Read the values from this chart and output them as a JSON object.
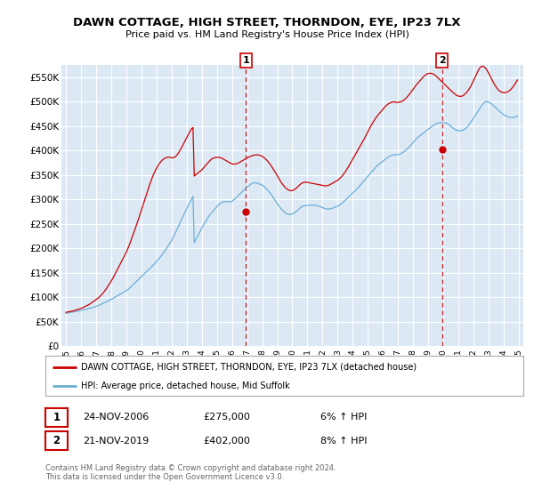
{
  "title": "DAWN COTTAGE, HIGH STREET, THORNDON, EYE, IP23 7LX",
  "subtitle": "Price paid vs. HM Land Registry's House Price Index (HPI)",
  "legend_line1": "DAWN COTTAGE, HIGH STREET, THORNDON, EYE, IP23 7LX (detached house)",
  "legend_line2": "HPI: Average price, detached house, Mid Suffolk",
  "sale1_date": "24-NOV-2006",
  "sale1_price": "£275,000",
  "sale1_hpi": "6% ↑ HPI",
  "sale2_date": "21-NOV-2019",
  "sale2_price": "£402,000",
  "sale2_hpi": "8% ↑ HPI",
  "footnote": "Contains HM Land Registry data © Crown copyright and database right 2024.\nThis data is licensed under the Open Government Licence v3.0.",
  "bg_color": "#ffffff",
  "plot_bg_color": "#dce9f5",
  "grid_color": "#ffffff",
  "hpi_color": "#6baed6",
  "price_color": "#cc0000",
  "sale_vline_color": "#cc0000",
  "ylim": [
    0,
    575000
  ],
  "yticks": [
    0,
    50000,
    100000,
    150000,
    200000,
    250000,
    300000,
    350000,
    400000,
    450000,
    500000,
    550000
  ],
  "ytick_labels": [
    "£0",
    "£50K",
    "£100K",
    "£150K",
    "£200K",
    "£250K",
    "£300K",
    "£350K",
    "£400K",
    "£450K",
    "£500K",
    "£550K"
  ],
  "hpi_months": [
    1995.0,
    1995.083,
    1995.167,
    1995.25,
    1995.333,
    1995.417,
    1995.5,
    1995.583,
    1995.667,
    1995.75,
    1995.833,
    1995.917,
    1996.0,
    1996.083,
    1996.167,
    1996.25,
    1996.333,
    1996.417,
    1996.5,
    1996.583,
    1996.667,
    1996.75,
    1996.833,
    1996.917,
    1997.0,
    1997.083,
    1997.167,
    1997.25,
    1997.333,
    1997.417,
    1997.5,
    1997.583,
    1997.667,
    1997.75,
    1997.833,
    1997.917,
    1998.0,
    1998.083,
    1998.167,
    1998.25,
    1998.333,
    1998.417,
    1998.5,
    1998.583,
    1998.667,
    1998.75,
    1998.833,
    1998.917,
    1999.0,
    1999.083,
    1999.167,
    1999.25,
    1999.333,
    1999.417,
    1999.5,
    1999.583,
    1999.667,
    1999.75,
    1999.833,
    1999.917,
    2000.0,
    2000.083,
    2000.167,
    2000.25,
    2000.333,
    2000.417,
    2000.5,
    2000.583,
    2000.667,
    2000.75,
    2000.833,
    2000.917,
    2001.0,
    2001.083,
    2001.167,
    2001.25,
    2001.333,
    2001.417,
    2001.5,
    2001.583,
    2001.667,
    2001.75,
    2001.833,
    2001.917,
    2002.0,
    2002.083,
    2002.167,
    2002.25,
    2002.333,
    2002.417,
    2002.5,
    2002.583,
    2002.667,
    2002.75,
    2002.833,
    2002.917,
    2003.0,
    2003.083,
    2003.167,
    2003.25,
    2003.333,
    2003.417,
    2003.5,
    2003.583,
    2003.667,
    2003.75,
    2003.833,
    2003.917,
    2004.0,
    2004.083,
    2004.167,
    2004.25,
    2004.333,
    2004.417,
    2004.5,
    2004.583,
    2004.667,
    2004.75,
    2004.833,
    2004.917,
    2005.0,
    2005.083,
    2005.167,
    2005.25,
    2005.333,
    2005.417,
    2005.5,
    2005.583,
    2005.667,
    2005.75,
    2005.833,
    2005.917,
    2006.0,
    2006.083,
    2006.167,
    2006.25,
    2006.333,
    2006.417,
    2006.5,
    2006.583,
    2006.667,
    2006.75,
    2006.833,
    2006.917,
    2007.0,
    2007.083,
    2007.167,
    2007.25,
    2007.333,
    2007.417,
    2007.5,
    2007.583,
    2007.667,
    2007.75,
    2007.833,
    2007.917,
    2008.0,
    2008.083,
    2008.167,
    2008.25,
    2008.333,
    2008.417,
    2008.5,
    2008.583,
    2008.667,
    2008.75,
    2008.833,
    2008.917,
    2009.0,
    2009.083,
    2009.167,
    2009.25,
    2009.333,
    2009.417,
    2009.5,
    2009.583,
    2009.667,
    2009.75,
    2009.833,
    2009.917,
    2010.0,
    2010.083,
    2010.167,
    2010.25,
    2010.333,
    2010.417,
    2010.5,
    2010.583,
    2010.667,
    2010.75,
    2010.833,
    2010.917,
    2011.0,
    2011.083,
    2011.167,
    2011.25,
    2011.333,
    2011.417,
    2011.5,
    2011.583,
    2011.667,
    2011.75,
    2011.833,
    2011.917,
    2012.0,
    2012.083,
    2012.167,
    2012.25,
    2012.333,
    2012.417,
    2012.5,
    2012.583,
    2012.667,
    2012.75,
    2012.833,
    2012.917,
    2013.0,
    2013.083,
    2013.167,
    2013.25,
    2013.333,
    2013.417,
    2013.5,
    2013.583,
    2013.667,
    2013.75,
    2013.833,
    2013.917,
    2014.0,
    2014.083,
    2014.167,
    2014.25,
    2014.333,
    2014.417,
    2014.5,
    2014.583,
    2014.667,
    2014.75,
    2014.833,
    2014.917,
    2015.0,
    2015.083,
    2015.167,
    2015.25,
    2015.333,
    2015.417,
    2015.5,
    2015.583,
    2015.667,
    2015.75,
    2015.833,
    2015.917,
    2016.0,
    2016.083,
    2016.167,
    2016.25,
    2016.333,
    2016.417,
    2016.5,
    2016.583,
    2016.667,
    2016.75,
    2016.833,
    2016.917,
    2017.0,
    2017.083,
    2017.167,
    2017.25,
    2017.333,
    2017.417,
    2017.5,
    2017.583,
    2017.667,
    2017.75,
    2017.833,
    2017.917,
    2018.0,
    2018.083,
    2018.167,
    2018.25,
    2018.333,
    2018.417,
    2018.5,
    2018.583,
    2018.667,
    2018.75,
    2018.833,
    2018.917,
    2019.0,
    2019.083,
    2019.167,
    2019.25,
    2019.333,
    2019.417,
    2019.5,
    2019.583,
    2019.667,
    2019.75,
    2019.833,
    2019.917,
    2020.0,
    2020.083,
    2020.167,
    2020.25,
    2020.333,
    2020.417,
    2020.5,
    2020.583,
    2020.667,
    2020.75,
    2020.833,
    2020.917,
    2021.0,
    2021.083,
    2021.167,
    2021.25,
    2021.333,
    2021.417,
    2021.5,
    2021.583,
    2021.667,
    2021.75,
    2021.833,
    2021.917,
    2022.0,
    2022.083,
    2022.167,
    2022.25,
    2022.333,
    2022.417,
    2022.5,
    2022.583,
    2022.667,
    2022.75,
    2022.833,
    2022.917,
    2023.0,
    2023.083,
    2023.167,
    2023.25,
    2023.333,
    2023.417,
    2023.5,
    2023.583,
    2023.667,
    2023.75,
    2023.833,
    2023.917,
    2024.0,
    2024.083,
    2024.167,
    2024.25,
    2024.333,
    2024.417,
    2024.5,
    2024.583,
    2024.667,
    2024.75,
    2024.833,
    2024.917
  ],
  "hpi_values": [
    67000,
    67500,
    68000,
    68500,
    69000,
    69500,
    70000,
    70500,
    71000,
    71500,
    72000,
    72500,
    73000,
    73500,
    74000,
    74500,
    75000,
    75800,
    76500,
    77200,
    78000,
    78800,
    79500,
    80200,
    81000,
    82000,
    83000,
    84200,
    85500,
    86800,
    88000,
    89200,
    90500,
    91800,
    93000,
    94200,
    95500,
    97000,
    98500,
    100000,
    101500,
    103000,
    104500,
    106000,
    107500,
    109000,
    110500,
    112000,
    113500,
    115000,
    117000,
    119500,
    122000,
    124500,
    127000,
    129500,
    132000,
    134500,
    137000,
    139500,
    142000,
    144500,
    147000,
    149500,
    152000,
    154500,
    157000,
    159500,
    162000,
    164500,
    167000,
    170000,
    173000,
    176000,
    179000,
    182000,
    185000,
    188500,
    192000,
    196000,
    200000,
    204000,
    208000,
    212000,
    216000,
    221000,
    226000,
    231500,
    237000,
    242500,
    248000,
    253500,
    259000,
    264500,
    270000,
    275500,
    281000,
    286000,
    291000,
    296000,
    301000,
    306000,
    211000,
    216000,
    221000,
    226000,
    231000,
    236000,
    241000,
    245500,
    250000,
    254500,
    259000,
    263000,
    267000,
    270000,
    273000,
    276000,
    279000,
    282000,
    285000,
    287500,
    290000,
    292000,
    293500,
    294500,
    295000,
    295000,
    295000,
    295000,
    295000,
    295000,
    296000,
    298000,
    300000,
    302500,
    305000,
    307500,
    310000,
    312500,
    315000,
    317500,
    320000,
    322500,
    325000,
    327000,
    329000,
    331000,
    332500,
    333500,
    334000,
    333500,
    333000,
    332000,
    331000,
    330000,
    329000,
    327000,
    325000,
    322500,
    320000,
    317000,
    314000,
    310500,
    307000,
    303000,
    299000,
    295000,
    291000,
    287500,
    284000,
    281000,
    278000,
    275500,
    273000,
    271000,
    270000,
    269500,
    269000,
    269500,
    270000,
    271500,
    273000,
    275000,
    277000,
    279500,
    282000,
    284000,
    285500,
    286500,
    287000,
    287000,
    287000,
    287500,
    288000,
    288000,
    288000,
    288000,
    288000,
    287500,
    287000,
    286000,
    285000,
    284000,
    283000,
    282000,
    281000,
    280500,
    280000,
    280000,
    280500,
    281000,
    282000,
    283000,
    284000,
    285000,
    286000,
    287500,
    289000,
    291000,
    293000,
    295500,
    298000,
    300500,
    303000,
    305500,
    308000,
    310500,
    313000,
    315500,
    318000,
    320500,
    323000,
    326000,
    329000,
    332000,
    335000,
    338000,
    341000,
    344000,
    347000,
    350000,
    353000,
    356000,
    359000,
    362000,
    365000,
    367500,
    370000,
    372000,
    374000,
    376000,
    378000,
    380000,
    382000,
    384000,
    386000,
    387500,
    389000,
    390000,
    390500,
    391000,
    391000,
    391000,
    391500,
    392000,
    393000,
    394500,
    396000,
    398000,
    400000,
    402500,
    405000,
    407500,
    410000,
    413000,
    416000,
    419000,
    422000,
    424500,
    427000,
    429000,
    431000,
    433000,
    435000,
    437000,
    439000,
    441000,
    443000,
    445000,
    447000,
    449000,
    451000,
    452500,
    454000,
    455000,
    456000,
    456500,
    457000,
    457000,
    457000,
    456500,
    456000,
    455000,
    453500,
    451500,
    449000,
    447000,
    445000,
    443500,
    442000,
    441000,
    440000,
    440000,
    440500,
    441000,
    442000,
    443500,
    445500,
    448000,
    451000,
    454500,
    458000,
    462000,
    466000,
    470000,
    474000,
    478000,
    482000,
    486000,
    489500,
    493000,
    496000,
    498500,
    500000,
    499500,
    498500,
    497000,
    495500,
    493500,
    491500,
    489000,
    486500,
    484000,
    481500,
    479000,
    477000,
    475000,
    473000,
    471500,
    470000,
    469000,
    468000,
    467500,
    467000,
    467000,
    467500,
    468000,
    469000,
    470000
  ],
  "price_values": [
    69000,
    69500,
    70000,
    70500,
    71000,
    71500,
    72000,
    72800,
    73500,
    74300,
    75000,
    76000,
    77000,
    78000,
    79200,
    80500,
    81800,
    83000,
    84500,
    86000,
    87800,
    89500,
    91200,
    93000,
    95000,
    97000,
    99000,
    101500,
    104000,
    107000,
    110000,
    113500,
    117000,
    121000,
    125000,
    129000,
    133000,
    137500,
    142000,
    147000,
    152000,
    157000,
    162000,
    167000,
    172000,
    177000,
    182000,
    187000,
    192000,
    198000,
    204000,
    211000,
    218000,
    225000,
    232000,
    239500,
    247000,
    254500,
    262000,
    270000,
    278000,
    286000,
    294000,
    302000,
    310000,
    318000,
    326000,
    333500,
    340500,
    347000,
    353000,
    358500,
    363500,
    368000,
    372000,
    375500,
    378500,
    381000,
    383000,
    384500,
    385500,
    386000,
    386000,
    385500,
    385000,
    385000,
    385500,
    387000,
    389500,
    393000,
    397000,
    401500,
    406000,
    411000,
    416000,
    421000,
    426000,
    431000,
    436000,
    440500,
    444500,
    447000,
    347500,
    350000,
    352000,
    354000,
    356000,
    358000,
    360000,
    363000,
    366000,
    369000,
    372000,
    375000,
    378000,
    380500,
    382500,
    384000,
    385000,
    385500,
    386000,
    386000,
    385500,
    385000,
    384000,
    382500,
    381000,
    379500,
    378000,
    376500,
    375000,
    373500,
    372500,
    372000,
    372000,
    372500,
    373000,
    374000,
    375500,
    377000,
    378500,
    380000,
    381500,
    383000,
    384500,
    386000,
    387000,
    388000,
    389000,
    390000,
    390500,
    391000,
    391000,
    390500,
    390000,
    389000,
    388000,
    386000,
    384000,
    381500,
    379000,
    376000,
    372500,
    369000,
    365000,
    361000,
    357000,
    352500,
    348000,
    343500,
    339000,
    335000,
    331500,
    328000,
    325000,
    322500,
    320500,
    319000,
    318000,
    317500,
    318000,
    319000,
    320500,
    322500,
    325000,
    327500,
    330000,
    332000,
    333500,
    334500,
    335000,
    335000,
    334500,
    334000,
    333500,
    333000,
    332500,
    332000,
    331500,
    331000,
    330500,
    330000,
    329500,
    329000,
    328500,
    328000,
    327500,
    327500,
    328000,
    329000,
    330000,
    331500,
    333000,
    334500,
    336000,
    337500,
    339000,
    341000,
    343500,
    346000,
    349000,
    352500,
    356000,
    360000,
    364000,
    368500,
    373000,
    377500,
    382000,
    386500,
    391000,
    395500,
    400000,
    404500,
    409000,
    413500,
    418000,
    423000,
    428000,
    433000,
    438000,
    443000,
    448000,
    452500,
    457000,
    461000,
    465000,
    468500,
    472000,
    475000,
    478000,
    481000,
    484000,
    487000,
    490000,
    492500,
    494500,
    496000,
    497500,
    498500,
    499000,
    499000,
    498500,
    498000,
    498000,
    498500,
    499000,
    500000,
    501500,
    503500,
    506000,
    508500,
    511500,
    514500,
    518000,
    521500,
    525000,
    528500,
    532000,
    535000,
    538000,
    541000,
    544000,
    547000,
    550000,
    552500,
    554500,
    556000,
    557000,
    557500,
    557500,
    557000,
    556000,
    554500,
    552500,
    550000,
    547500,
    545000,
    542500,
    540000,
    537500,
    535000,
    532500,
    530000,
    527500,
    525000,
    522500,
    520000,
    517500,
    515500,
    513500,
    512000,
    511000,
    510500,
    510500,
    511000,
    512500,
    514500,
    517000,
    520000,
    523500,
    527500,
    532000,
    537000,
    542500,
    548000,
    554000,
    559500,
    564500,
    568500,
    571000,
    572000,
    571500,
    569500,
    566500,
    562500,
    558000,
    553000,
    548000,
    543000,
    538000,
    533500,
    529500,
    526000,
    523000,
    521000,
    519500,
    518500,
    518000,
    518000,
    518500,
    519500,
    521000,
    523000,
    525500,
    528500,
    532000,
    536000,
    540000,
    544000
  ],
  "sale1_year": 2006.917,
  "sale2_year": 2019.917,
  "sale1_value": 275000,
  "sale2_value": 402000,
  "xtick_years": [
    1995,
    1996,
    1997,
    1998,
    1999,
    2000,
    2001,
    2002,
    2003,
    2004,
    2005,
    2006,
    2007,
    2008,
    2009,
    2010,
    2011,
    2012,
    2013,
    2014,
    2015,
    2016,
    2017,
    2018,
    2019,
    2020,
    2021,
    2022,
    2023,
    2024,
    2025
  ]
}
